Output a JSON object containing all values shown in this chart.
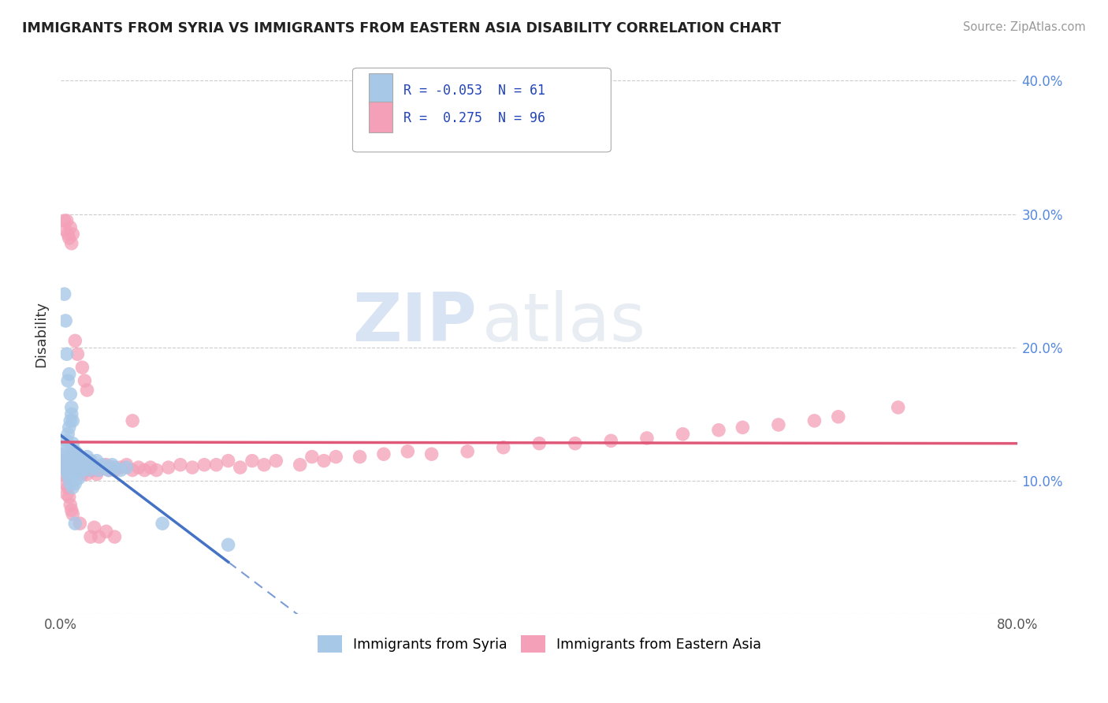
{
  "title": "IMMIGRANTS FROM SYRIA VS IMMIGRANTS FROM EASTERN ASIA DISABILITY CORRELATION CHART",
  "source": "Source: ZipAtlas.com",
  "ylabel": "Disability",
  "xlim": [
    0.0,
    0.8
  ],
  "ylim": [
    0.0,
    0.42
  ],
  "yticks": [
    0.0,
    0.1,
    0.2,
    0.3,
    0.4
  ],
  "yticklabels": [
    "",
    "10.0%",
    "20.0%",
    "30.0%",
    "40.0%"
  ],
  "grid_color": "#cccccc",
  "background_color": "#ffffff",
  "syria_color": "#a8c8e8",
  "syria_line_color": "#4472c4",
  "eastern_asia_color": "#f4a0b8",
  "eastern_asia_line_color": "#e05878",
  "watermark_zip": "ZIP",
  "watermark_atlas": "atlas",
  "legend_R1": "-0.053",
  "legend_N1": "61",
  "legend_R2": "0.275",
  "legend_N2": "96",
  "syria_x": [
    0.002,
    0.003,
    0.004,
    0.004,
    0.005,
    0.005,
    0.005,
    0.006,
    0.006,
    0.006,
    0.007,
    0.007,
    0.007,
    0.008,
    0.008,
    0.008,
    0.009,
    0.009,
    0.01,
    0.01,
    0.01,
    0.011,
    0.011,
    0.012,
    0.012,
    0.013,
    0.013,
    0.014,
    0.015,
    0.015,
    0.016,
    0.017,
    0.018,
    0.019,
    0.02,
    0.021,
    0.022,
    0.024,
    0.025,
    0.027,
    0.028,
    0.03,
    0.032,
    0.035,
    0.038,
    0.04,
    0.043,
    0.045,
    0.05,
    0.055,
    0.003,
    0.004,
    0.005,
    0.006,
    0.007,
    0.008,
    0.009,
    0.01,
    0.012,
    0.085,
    0.14
  ],
  "syria_y": [
    0.12,
    0.115,
    0.125,
    0.11,
    0.13,
    0.118,
    0.108,
    0.135,
    0.112,
    0.105,
    0.14,
    0.118,
    0.102,
    0.145,
    0.12,
    0.098,
    0.15,
    0.115,
    0.128,
    0.112,
    0.095,
    0.118,
    0.105,
    0.122,
    0.098,
    0.116,
    0.108,
    0.12,
    0.114,
    0.102,
    0.118,
    0.112,
    0.108,
    0.115,
    0.11,
    0.112,
    0.118,
    0.108,
    0.115,
    0.112,
    0.11,
    0.115,
    0.108,
    0.112,
    0.11,
    0.108,
    0.112,
    0.11,
    0.108,
    0.11,
    0.24,
    0.22,
    0.195,
    0.175,
    0.18,
    0.165,
    0.155,
    0.145,
    0.068,
    0.068,
    0.052
  ],
  "eastern_asia_x": [
    0.002,
    0.003,
    0.004,
    0.005,
    0.005,
    0.006,
    0.006,
    0.007,
    0.007,
    0.008,
    0.008,
    0.009,
    0.009,
    0.01,
    0.01,
    0.011,
    0.012,
    0.013,
    0.014,
    0.015,
    0.016,
    0.017,
    0.018,
    0.019,
    0.02,
    0.021,
    0.022,
    0.024,
    0.025,
    0.027,
    0.028,
    0.03,
    0.032,
    0.035,
    0.038,
    0.04,
    0.043,
    0.045,
    0.05,
    0.055,
    0.06,
    0.065,
    0.07,
    0.075,
    0.08,
    0.09,
    0.1,
    0.11,
    0.12,
    0.13,
    0.14,
    0.15,
    0.16,
    0.17,
    0.18,
    0.2,
    0.21,
    0.22,
    0.23,
    0.25,
    0.27,
    0.29,
    0.31,
    0.34,
    0.37,
    0.4,
    0.43,
    0.46,
    0.49,
    0.52,
    0.55,
    0.57,
    0.6,
    0.63,
    0.65,
    0.7,
    0.003,
    0.004,
    0.005,
    0.006,
    0.007,
    0.008,
    0.009,
    0.01,
    0.012,
    0.014,
    0.016,
    0.018,
    0.02,
    0.022,
    0.025,
    0.028,
    0.032,
    0.038,
    0.045,
    0.06
  ],
  "eastern_asia_y": [
    0.105,
    0.098,
    0.11,
    0.115,
    0.09,
    0.108,
    0.095,
    0.112,
    0.088,
    0.115,
    0.082,
    0.118,
    0.078,
    0.12,
    0.075,
    0.118,
    0.115,
    0.112,
    0.108,
    0.112,
    0.108,
    0.11,
    0.105,
    0.112,
    0.108,
    0.11,
    0.105,
    0.112,
    0.108,
    0.11,
    0.108,
    0.105,
    0.108,
    0.11,
    0.112,
    0.108,
    0.11,
    0.108,
    0.11,
    0.112,
    0.108,
    0.11,
    0.108,
    0.11,
    0.108,
    0.11,
    0.112,
    0.11,
    0.112,
    0.112,
    0.115,
    0.11,
    0.115,
    0.112,
    0.115,
    0.112,
    0.118,
    0.115,
    0.118,
    0.118,
    0.12,
    0.122,
    0.12,
    0.122,
    0.125,
    0.128,
    0.128,
    0.13,
    0.132,
    0.135,
    0.138,
    0.14,
    0.142,
    0.145,
    0.148,
    0.155,
    0.295,
    0.288,
    0.295,
    0.285,
    0.282,
    0.29,
    0.278,
    0.285,
    0.205,
    0.195,
    0.068,
    0.185,
    0.175,
    0.168,
    0.058,
    0.065,
    0.058,
    0.062,
    0.058,
    0.145
  ]
}
